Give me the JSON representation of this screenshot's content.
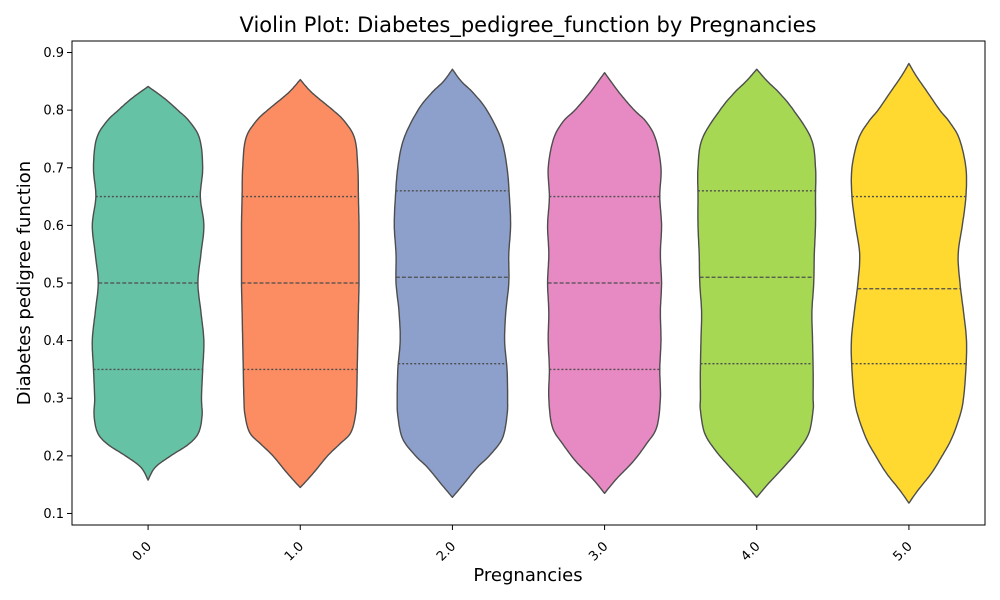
{
  "chart_data": {
    "type": "violin",
    "title": "Violin Plot: Diabetes_pedigree_function by Pregnancies",
    "xlabel": "Pregnancies",
    "ylabel": "Diabetes pedigree function",
    "ylim": [
      0.08,
      0.92
    ],
    "yticks": [
      "0.1",
      "0.2",
      "0.3",
      "0.4",
      "0.5",
      "0.6",
      "0.7",
      "0.8",
      "0.9"
    ],
    "grid": false,
    "categories": [
      "0.0",
      "1.0",
      "2.0",
      "3.0",
      "4.0",
      "5.0"
    ],
    "colors": [
      "#66c2a5",
      "#fc8d62",
      "#8da0cb",
      "#e78ac3",
      "#a6d854",
      "#ffd92f"
    ],
    "violins": [
      {
        "category": "0.0",
        "min": 0.158,
        "max": 0.841,
        "q1": 0.35,
        "median": 0.5,
        "q3": 0.65,
        "profile": [
          [
            0.158,
            0.0
          ],
          [
            0.18,
            0.12
          ],
          [
            0.2,
            0.38
          ],
          [
            0.22,
            0.68
          ],
          [
            0.24,
            0.85
          ],
          [
            0.27,
            0.91
          ],
          [
            0.3,
            0.9
          ],
          [
            0.35,
            0.92
          ],
          [
            0.4,
            0.94
          ],
          [
            0.45,
            0.89
          ],
          [
            0.5,
            0.84
          ],
          [
            0.55,
            0.89
          ],
          [
            0.6,
            0.94
          ],
          [
            0.65,
            0.88
          ],
          [
            0.7,
            0.92
          ],
          [
            0.75,
            0.87
          ],
          [
            0.78,
            0.7
          ],
          [
            0.8,
            0.5
          ],
          [
            0.82,
            0.28
          ],
          [
            0.841,
            0.0
          ]
        ]
      },
      {
        "category": "1.0",
        "min": 0.145,
        "max": 0.853,
        "q1": 0.35,
        "median": 0.5,
        "q3": 0.65,
        "profile": [
          [
            0.145,
            0.0
          ],
          [
            0.17,
            0.22
          ],
          [
            0.2,
            0.46
          ],
          [
            0.22,
            0.66
          ],
          [
            0.24,
            0.85
          ],
          [
            0.27,
            0.93
          ],
          [
            0.3,
            0.95
          ],
          [
            0.35,
            0.96
          ],
          [
            0.4,
            0.97
          ],
          [
            0.45,
            0.98
          ],
          [
            0.5,
            0.99
          ],
          [
            0.55,
            0.99
          ],
          [
            0.6,
            0.99
          ],
          [
            0.65,
            0.98
          ],
          [
            0.7,
            0.97
          ],
          [
            0.75,
            0.92
          ],
          [
            0.78,
            0.75
          ],
          [
            0.8,
            0.55
          ],
          [
            0.83,
            0.2
          ],
          [
            0.853,
            0.0
          ]
        ]
      },
      {
        "category": "2.0",
        "min": 0.128,
        "max": 0.871,
        "q1": 0.36,
        "median": 0.51,
        "q3": 0.66,
        "profile": [
          [
            0.128,
            0.0
          ],
          [
            0.15,
            0.18
          ],
          [
            0.18,
            0.42
          ],
          [
            0.2,
            0.62
          ],
          [
            0.23,
            0.84
          ],
          [
            0.27,
            0.92
          ],
          [
            0.3,
            0.93
          ],
          [
            0.35,
            0.92
          ],
          [
            0.4,
            0.88
          ],
          [
            0.45,
            0.9
          ],
          [
            0.5,
            0.95
          ],
          [
            0.55,
            0.95
          ],
          [
            0.6,
            0.98
          ],
          [
            0.65,
            0.96
          ],
          [
            0.7,
            0.92
          ],
          [
            0.75,
            0.82
          ],
          [
            0.8,
            0.58
          ],
          [
            0.83,
            0.35
          ],
          [
            0.85,
            0.15
          ],
          [
            0.871,
            0.0
          ]
        ]
      },
      {
        "category": "3.0",
        "min": 0.135,
        "max": 0.865,
        "q1": 0.35,
        "median": 0.5,
        "q3": 0.65,
        "profile": [
          [
            0.135,
            0.0
          ],
          [
            0.16,
            0.2
          ],
          [
            0.19,
            0.48
          ],
          [
            0.22,
            0.7
          ],
          [
            0.25,
            0.88
          ],
          [
            0.3,
            0.94
          ],
          [
            0.35,
            0.93
          ],
          [
            0.4,
            0.95
          ],
          [
            0.45,
            0.94
          ],
          [
            0.5,
            0.96
          ],
          [
            0.55,
            0.94
          ],
          [
            0.6,
            0.96
          ],
          [
            0.65,
            0.93
          ],
          [
            0.7,
            0.95
          ],
          [
            0.75,
            0.86
          ],
          [
            0.78,
            0.7
          ],
          [
            0.8,
            0.5
          ],
          [
            0.83,
            0.25
          ],
          [
            0.865,
            0.0
          ]
        ]
      },
      {
        "category": "4.0",
        "min": 0.128,
        "max": 0.871,
        "q1": 0.36,
        "median": 0.51,
        "q3": 0.66,
        "profile": [
          [
            0.128,
            0.0
          ],
          [
            0.15,
            0.18
          ],
          [
            0.18,
            0.45
          ],
          [
            0.21,
            0.7
          ],
          [
            0.24,
            0.88
          ],
          [
            0.28,
            0.95
          ],
          [
            0.3,
            0.95
          ],
          [
            0.35,
            0.95
          ],
          [
            0.4,
            0.94
          ],
          [
            0.45,
            0.93
          ],
          [
            0.5,
            0.96
          ],
          [
            0.55,
            0.97
          ],
          [
            0.6,
            0.99
          ],
          [
            0.65,
            0.99
          ],
          [
            0.7,
            0.99
          ],
          [
            0.75,
            0.92
          ],
          [
            0.8,
            0.62
          ],
          [
            0.83,
            0.38
          ],
          [
            0.85,
            0.18
          ],
          [
            0.871,
            0.0
          ]
        ]
      },
      {
        "category": "5.0",
        "min": 0.118,
        "max": 0.881,
        "q1": 0.36,
        "median": 0.49,
        "q3": 0.65,
        "profile": [
          [
            0.118,
            0.0
          ],
          [
            0.14,
            0.15
          ],
          [
            0.17,
            0.38
          ],
          [
            0.2,
            0.56
          ],
          [
            0.23,
            0.72
          ],
          [
            0.27,
            0.86
          ],
          [
            0.3,
            0.92
          ],
          [
            0.35,
            0.96
          ],
          [
            0.4,
            0.97
          ],
          [
            0.45,
            0.92
          ],
          [
            0.5,
            0.86
          ],
          [
            0.55,
            0.83
          ],
          [
            0.6,
            0.9
          ],
          [
            0.65,
            0.96
          ],
          [
            0.7,
            0.96
          ],
          [
            0.75,
            0.85
          ],
          [
            0.78,
            0.68
          ],
          [
            0.8,
            0.52
          ],
          [
            0.83,
            0.32
          ],
          [
            0.86,
            0.12
          ],
          [
            0.881,
            0.0
          ]
        ]
      }
    ]
  }
}
